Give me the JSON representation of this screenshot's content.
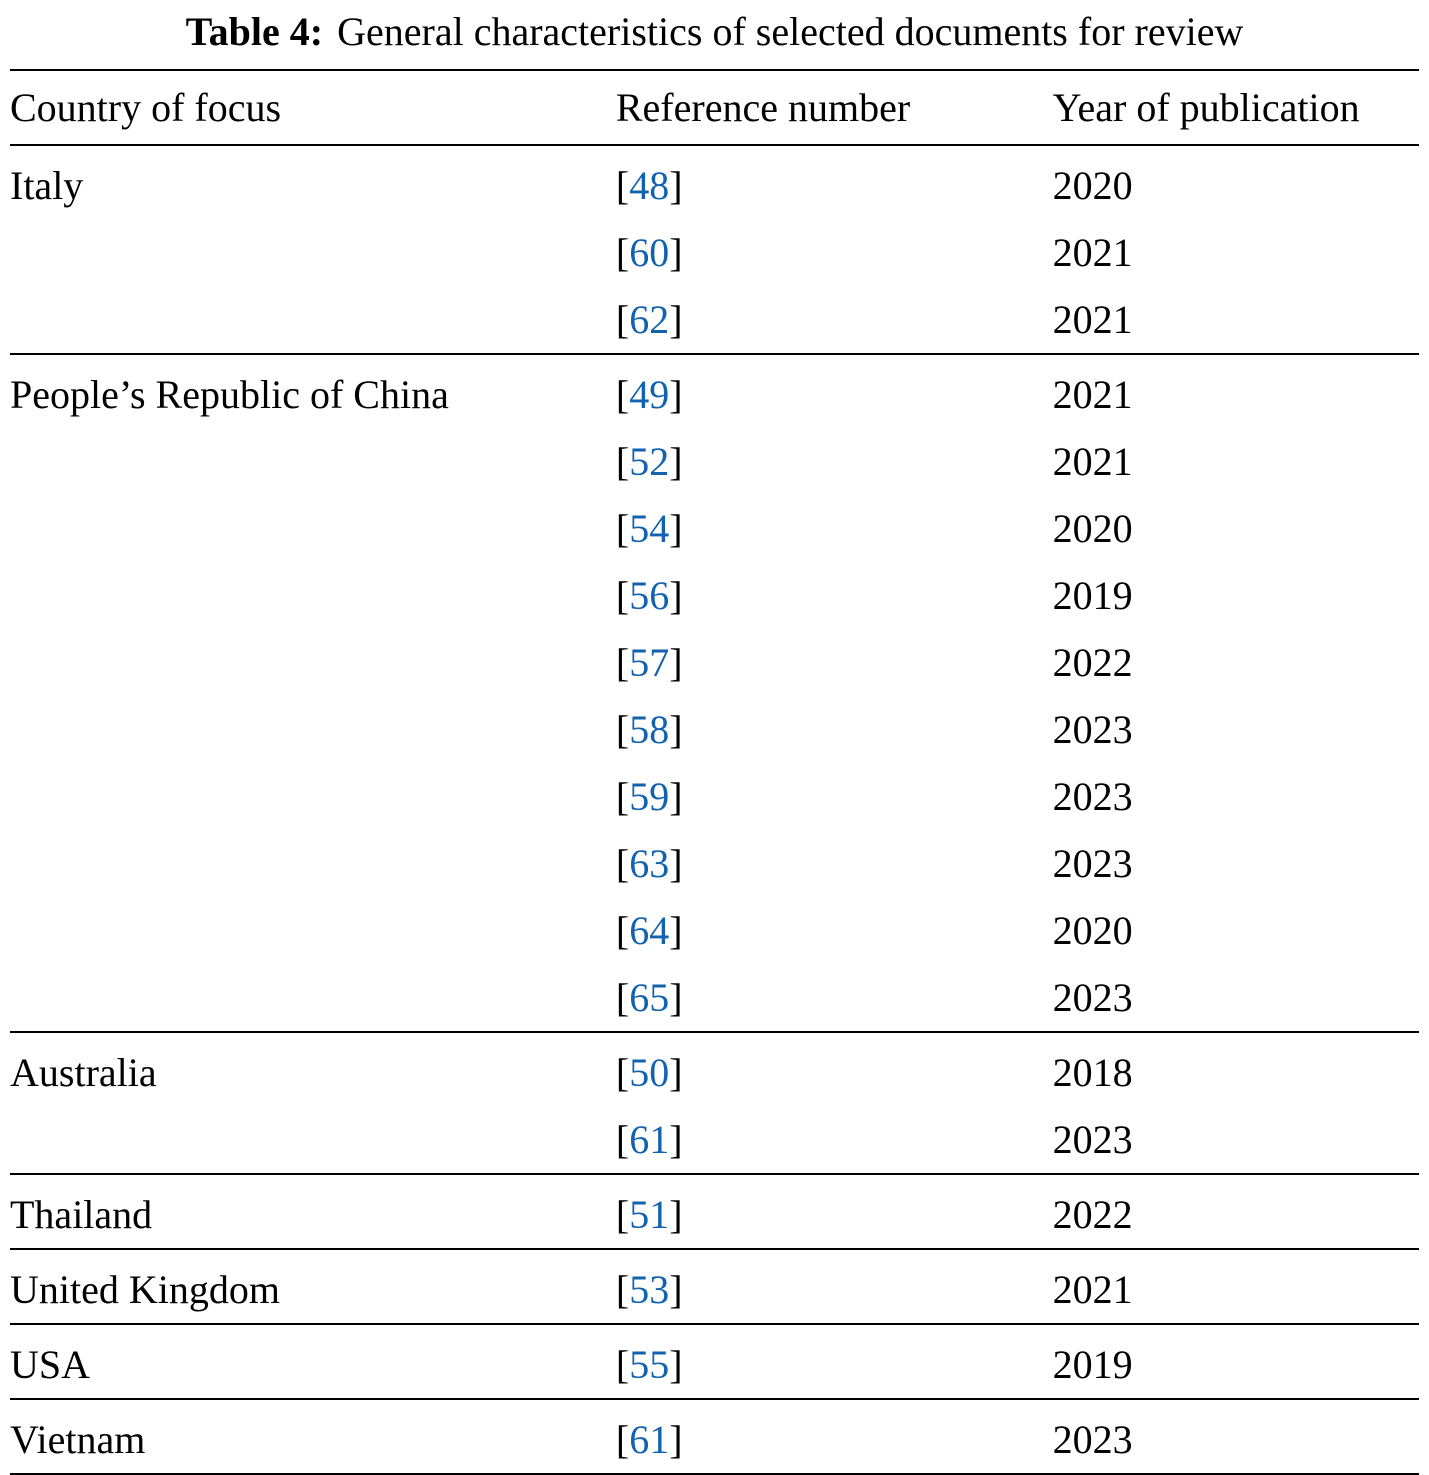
{
  "title": {
    "label": "Table 4:",
    "text": "General characteristics of selected documents for review"
  },
  "columns": [
    "Country of focus",
    "Reference number",
    "Year of publication"
  ],
  "groups": [
    {
      "country": "Italy",
      "entries": [
        {
          "ref": "48",
          "year": "2020"
        },
        {
          "ref": "60",
          "year": "2021"
        },
        {
          "ref": "62",
          "year": "2021"
        }
      ]
    },
    {
      "country": "People’s Republic of China",
      "entries": [
        {
          "ref": "49",
          "year": "2021"
        },
        {
          "ref": "52",
          "year": "2021"
        },
        {
          "ref": "54",
          "year": "2020"
        },
        {
          "ref": "56",
          "year": "2019"
        },
        {
          "ref": "57",
          "year": "2022"
        },
        {
          "ref": "58",
          "year": "2023"
        },
        {
          "ref": "59",
          "year": "2023"
        },
        {
          "ref": "63",
          "year": "2023"
        },
        {
          "ref": "64",
          "year": "2020"
        },
        {
          "ref": "65",
          "year": "2023"
        }
      ]
    },
    {
      "country": "Australia",
      "entries": [
        {
          "ref": "50",
          "year": "2018"
        },
        {
          "ref": "61",
          "year": "2023"
        }
      ]
    },
    {
      "country": "Thailand",
      "entries": [
        {
          "ref": "51",
          "year": "2022"
        }
      ]
    },
    {
      "country": "United Kingdom",
      "entries": [
        {
          "ref": "53",
          "year": "2021"
        }
      ]
    },
    {
      "country": "USA",
      "entries": [
        {
          "ref": "55",
          "year": "2019"
        }
      ]
    },
    {
      "country": "Vietnam",
      "entries": [
        {
          "ref": "61",
          "year": "2023"
        }
      ]
    }
  ],
  "colors": {
    "background": "#ffffff",
    "text": "#000000",
    "rule": "#000000",
    "link": "#1262af"
  }
}
